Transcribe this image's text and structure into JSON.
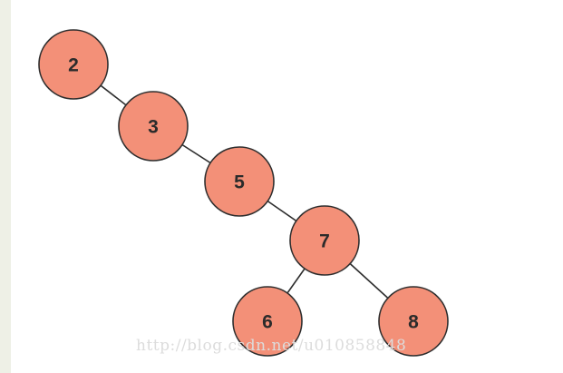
{
  "colors": {
    "node_fill": "#f39078",
    "node_stroke": "#2e2e2e",
    "edge": "#2e2e2e",
    "label": "#2b2b2b"
  },
  "tree": {
    "nodes": [
      {
        "id": "n2",
        "label": "2"
      },
      {
        "id": "n3",
        "label": "3"
      },
      {
        "id": "n5",
        "label": "5"
      },
      {
        "id": "n7",
        "label": "7"
      },
      {
        "id": "n6",
        "label": "6"
      },
      {
        "id": "n8",
        "label": "8"
      }
    ],
    "edges": [
      {
        "from": "n2",
        "to": "n3"
      },
      {
        "from": "n3",
        "to": "n5"
      },
      {
        "from": "n5",
        "to": "n7"
      },
      {
        "from": "n7",
        "to": "n6"
      },
      {
        "from": "n7",
        "to": "n8"
      }
    ]
  },
  "watermark": "http://blog.csdn.net/u010858848"
}
